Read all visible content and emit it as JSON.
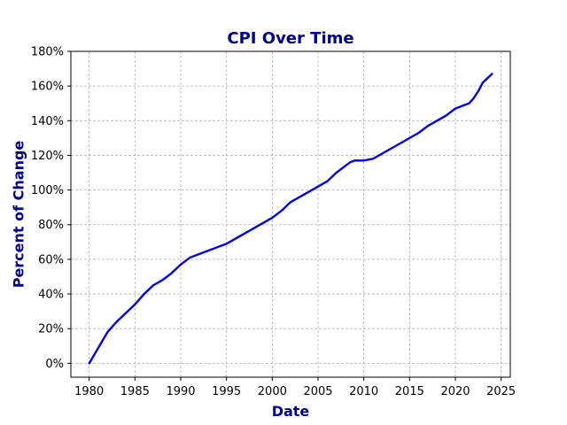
{
  "chart_data": {
    "type": "line",
    "title": "CPI Over Time",
    "xlabel": "Date",
    "ylabel": "Percent of Change",
    "xlim": [
      1978,
      2026
    ],
    "ylim": [
      -8,
      180
    ],
    "x_ticks": [
      1980,
      1985,
      1990,
      1995,
      2000,
      2005,
      2010,
      2015,
      2020,
      2025
    ],
    "x_tick_labels": [
      "1980",
      "1985",
      "1990",
      "1995",
      "2000",
      "2005",
      "2010",
      "2015",
      "2020",
      "2025"
    ],
    "y_ticks": [
      0,
      20,
      40,
      60,
      80,
      100,
      120,
      140,
      160,
      180
    ],
    "y_tick_labels": [
      "0%",
      "20%",
      "40%",
      "60%",
      "80%",
      "100%",
      "120%",
      "140%",
      "160%",
      "180%"
    ],
    "grid": true,
    "colors": {
      "line": "#0000ee",
      "title": "#00008b"
    },
    "series": [
      {
        "x": [
          1980,
          1981,
          1982,
          1983,
          1984,
          1985,
          1986,
          1987,
          1988,
          1989,
          1990,
          1991,
          1992,
          1993,
          1994,
          1995,
          1996,
          1997,
          1998,
          1999,
          2000,
          2001,
          2002,
          2003,
          2004,
          2005,
          2006,
          2007,
          2008,
          2008.5,
          2009,
          2010,
          2011,
          2012,
          2013,
          2014,
          2015,
          2016,
          2017,
          2018,
          2019,
          2020,
          2021,
          2021.5,
          2022,
          2022.5,
          2023,
          2024
        ],
        "y": [
          0,
          9,
          18,
          24,
          29,
          34,
          40,
          45,
          48,
          52,
          57,
          61,
          63,
          65,
          67,
          69,
          72,
          75,
          78,
          81,
          84,
          88,
          93,
          96,
          99,
          102,
          105,
          110,
          114,
          116,
          117,
          117,
          118,
          121,
          124,
          127,
          130,
          133,
          137,
          140,
          143,
          147,
          149,
          150,
          153,
          157,
          162,
          167
        ]
      }
    ]
  }
}
